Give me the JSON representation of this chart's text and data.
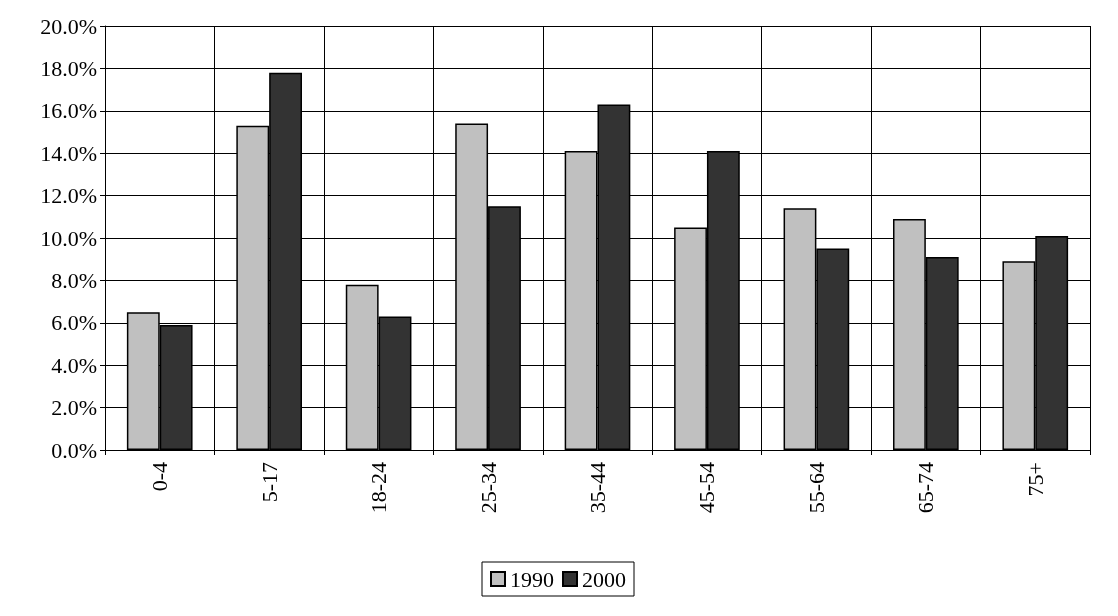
{
  "chart_data": {
    "type": "bar",
    "categories": [
      "0-4",
      "5-17",
      "18-24",
      "25-34",
      "35-44",
      "45-54",
      "55-64",
      "65-74",
      "75+"
    ],
    "series": [
      {
        "name": "1990",
        "color": "#c0c0c0",
        "values": [
          6.5,
          15.3,
          7.8,
          15.4,
          14.1,
          10.5,
          11.4,
          10.9,
          8.9
        ]
      },
      {
        "name": "2000",
        "color": "#333333",
        "values": [
          5.9,
          17.8,
          6.3,
          11.5,
          16.3,
          14.1,
          9.5,
          9.1,
          10.1
        ]
      }
    ],
    "ylim": [
      0,
      20
    ],
    "yticks": [
      {
        "value": 0,
        "label": "0.0%"
      },
      {
        "value": 2,
        "label": "2.0%"
      },
      {
        "value": 4,
        "label": "4.0%"
      },
      {
        "value": 6,
        "label": "6.0%"
      },
      {
        "value": 8,
        "label": "8.0%"
      },
      {
        "value": 10,
        "label": "10.0%"
      },
      {
        "value": 12,
        "label": "12.0%"
      },
      {
        "value": 14,
        "label": "14.0%"
      },
      {
        "value": 16,
        "label": "16.0%"
      },
      {
        "value": 18,
        "label": "18.0%"
      },
      {
        "value": 20,
        "label": "20.0%"
      }
    ],
    "grid": true,
    "legend": "bottom"
  }
}
